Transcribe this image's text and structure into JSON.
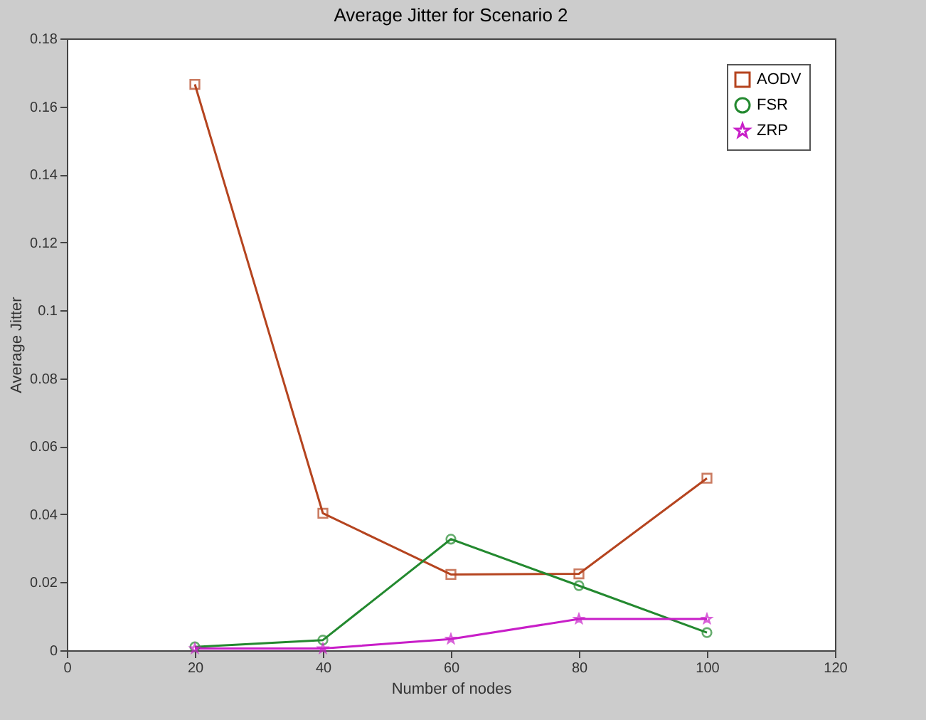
{
  "chart_data": {
    "type": "line",
    "title": "Average Jitter for Scenario 2",
    "xlabel": "Number of nodes",
    "ylabel": "Average Jitter",
    "x": [
      20,
      40,
      60,
      80,
      100
    ],
    "series": [
      {
        "name": "AODV",
        "color": "#b5441f",
        "marker": "square",
        "values": [
          0.1665,
          0.0403,
          0.0223,
          0.0225,
          0.0506
        ]
      },
      {
        "name": "FSR",
        "color": "#23892f",
        "marker": "circle",
        "values": [
          0.001,
          0.003,
          0.0327,
          0.019,
          0.0052
        ]
      },
      {
        "name": "ZRP",
        "color": "#c81ec8",
        "marker": "star",
        "values": [
          0.0005,
          0.0005,
          0.0033,
          0.0092,
          0.0092
        ]
      }
    ],
    "xlim": [
      0,
      120
    ],
    "xticks": [
      0,
      20,
      40,
      60,
      80,
      100,
      120
    ],
    "ylim": [
      0,
      0.18
    ],
    "yticks": [
      0,
      0.02,
      0.04,
      0.06,
      0.08,
      0.1,
      0.12,
      0.14,
      0.16,
      0.18
    ],
    "grid": false,
    "legend": "top right",
    "line_style": "solid"
  }
}
